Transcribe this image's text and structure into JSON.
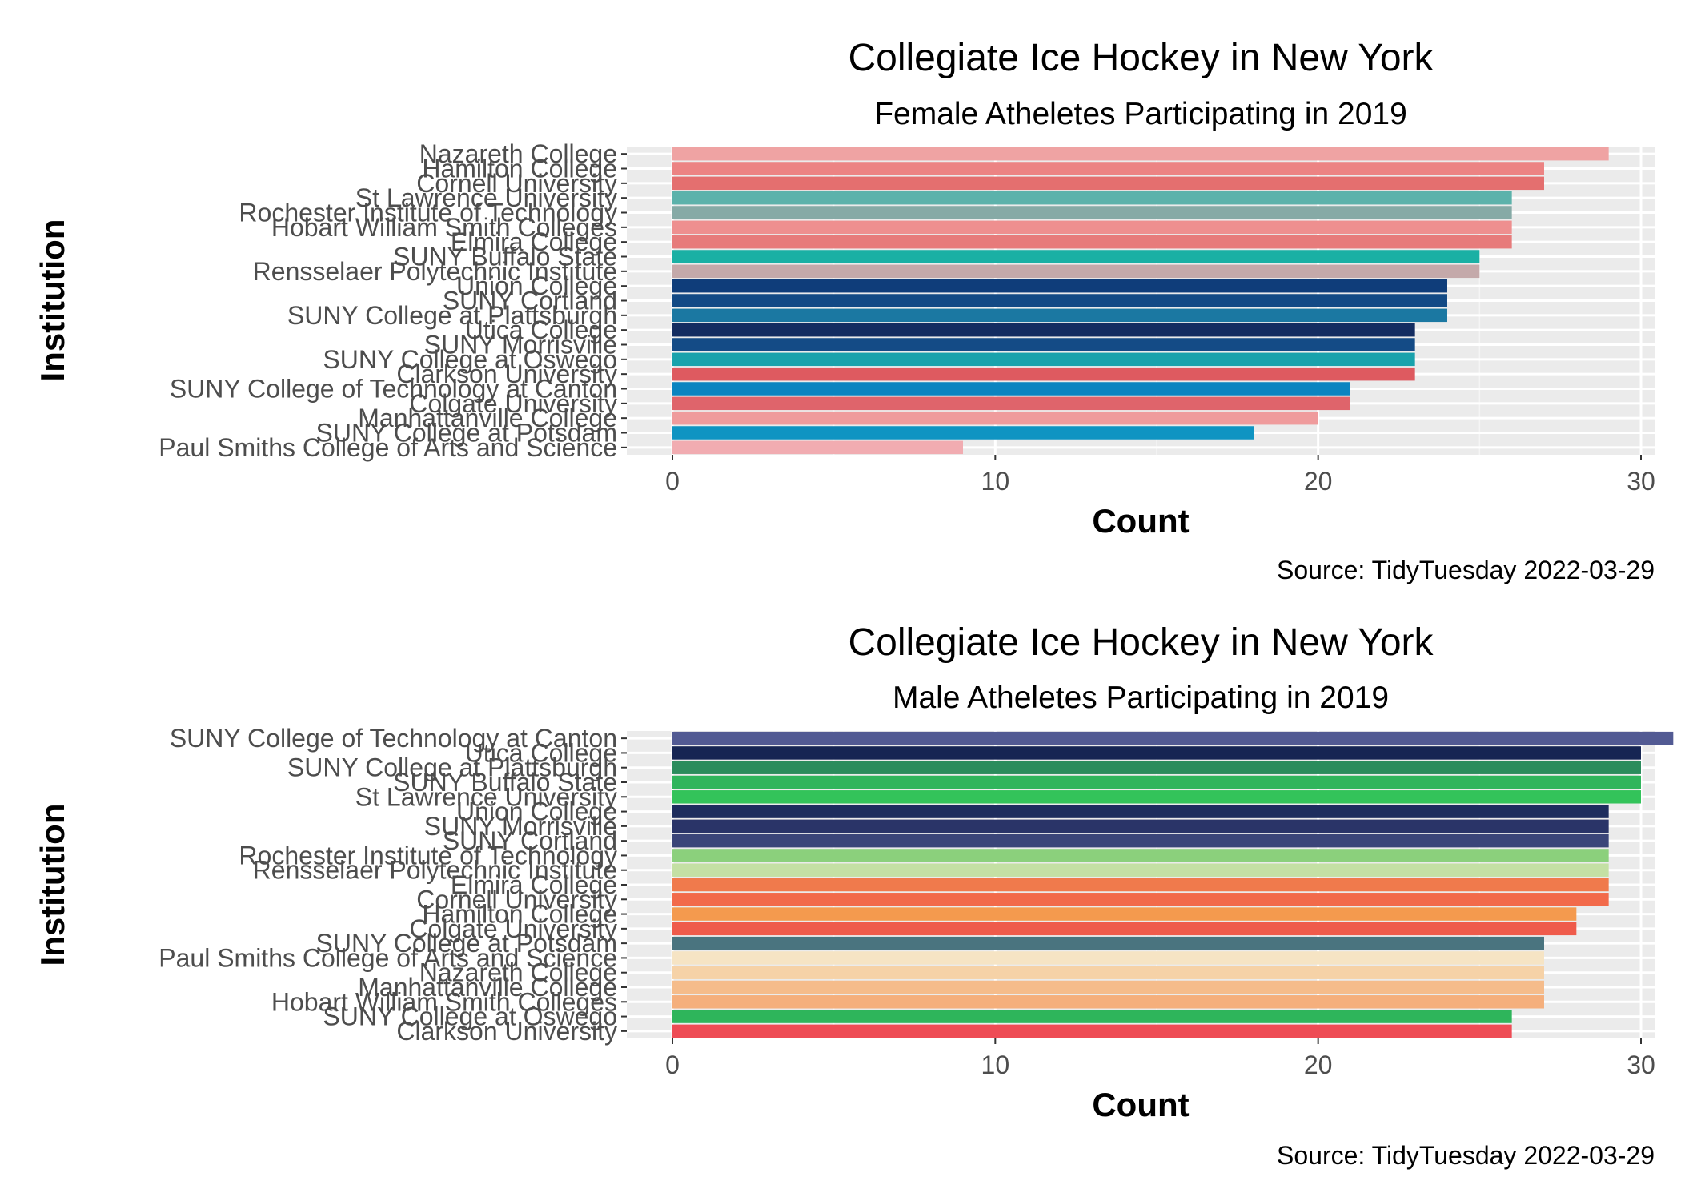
{
  "chart_data": [
    {
      "type": "bar",
      "orientation": "horizontal",
      "title": "Collegiate Ice Hockey in New York",
      "subtitle": "Female Atheletes Participating in 2019",
      "xlabel": "Count",
      "ylabel": "Institution",
      "caption": "Source: TidyTuesday 2022-03-29",
      "xlim": [
        0,
        30
      ],
      "xticks": [
        0,
        10,
        20,
        30
      ],
      "grid": true,
      "legend": "none",
      "categories": [
        "Nazareth College",
        "Hamilton College",
        "Cornell University",
        "St Lawrence University",
        "Rochester Institute of Technology",
        "Hobart William Smith Colleges",
        "Elmira College",
        "SUNY Buffalo State",
        "Rensselaer Polytechnic Institute",
        "Union College",
        "SUNY Cortland",
        "SUNY College at Plattsburgh",
        "Utica College",
        "SUNY Morrisville",
        "SUNY College at Oswego",
        "Clarkson University",
        "SUNY College of Technology at Canton",
        "Colgate University",
        "Manhattanville College",
        "SUNY College at Potsdam",
        "Paul Smiths College of Arts and Science"
      ],
      "values": [
        29,
        27,
        27,
        26,
        26,
        26,
        26,
        25,
        25,
        24,
        24,
        24,
        23,
        23,
        23,
        23,
        21,
        21,
        20,
        18,
        9
      ],
      "colors": [
        "#efa3a3",
        "#ec8383",
        "#e46f6f",
        "#5cb2ab",
        "#86aaa6",
        "#ee8f8f",
        "#e77b7b",
        "#1ab0a4",
        "#c4a9aa",
        "#0f3d7a",
        "#134a85",
        "#1b78a2",
        "#142d61",
        "#144b86",
        "#19a2ac",
        "#de5a60",
        "#0b84c0",
        "#df646b",
        "#ef9b9c",
        "#0f94c2",
        "#f1acb1"
      ]
    },
    {
      "type": "bar",
      "orientation": "horizontal",
      "title": "Collegiate Ice Hockey in New York",
      "subtitle": "Male Atheletes Participating in 2019",
      "xlabel": "Count",
      "ylabel": "Institution",
      "caption": "Source: TidyTuesday 2022-03-29",
      "xlim": [
        0,
        30
      ],
      "xticks": [
        0,
        10,
        20,
        30
      ],
      "grid": true,
      "legend": "none",
      "categories": [
        "SUNY College of Technology at Canton",
        "Utica College",
        "SUNY College at Plattsburgh",
        "SUNY Buffalo State",
        "St Lawrence University",
        "Union College",
        "SUNY Morrisville",
        "SUNY Cortland",
        "Rochester Institute of Technology",
        "Rensselaer Polytechnic Institute",
        "Elmira College",
        "Cornell University",
        "Hamilton College",
        "Colgate University",
        "SUNY College at Potsdam",
        "Paul Smiths College of Arts and Science",
        "Nazareth College",
        "Manhattanville College",
        "Hobart William Smith Colleges",
        "SUNY College at Oswego",
        "Clarkson University"
      ],
      "values": [
        31,
        30,
        30,
        30,
        30,
        29,
        29,
        29,
        29,
        29,
        29,
        29,
        28,
        28,
        27,
        27,
        27,
        27,
        27,
        26,
        26
      ],
      "colors": [
        "#525a93",
        "#162553",
        "#2b8c5c",
        "#30b55c",
        "#33c35a",
        "#1e2d5e",
        "#2a3468",
        "#3b4579",
        "#8bd07c",
        "#c4e0a4",
        "#f07a4c",
        "#f26a4a",
        "#f49a4e",
        "#ef5b4b",
        "#4a747f",
        "#f6e4c4",
        "#f6d2a7",
        "#f5bc8b",
        "#f5af7c",
        "#2eb55b",
        "#ee4c55"
      ]
    }
  ]
}
